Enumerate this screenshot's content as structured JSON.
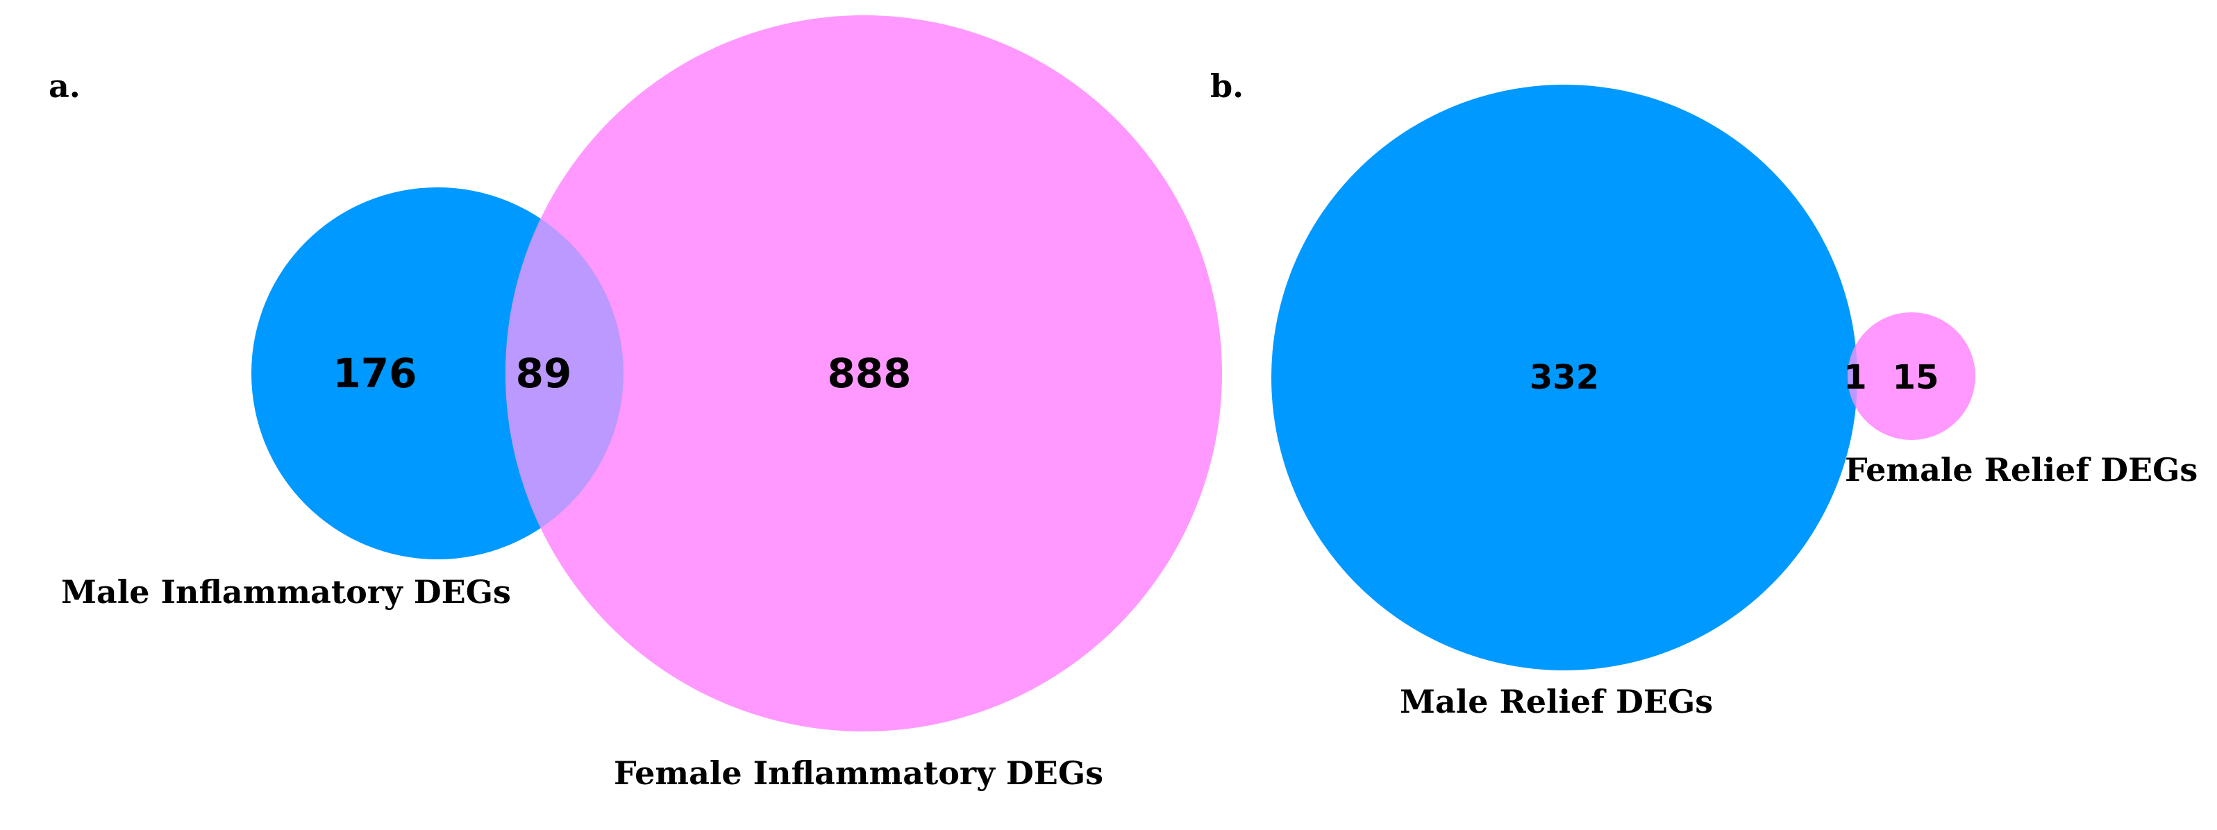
{
  "panels": [
    {
      "label": "a.",
      "sets": [
        {
          "name": "Male Inflammatory DEGs",
          "color": "#0099ff"
        },
        {
          "name": "Female Inflammatory DEGs",
          "color": "#ff99ff"
        }
      ],
      "counts": {
        "only_first": "176",
        "overlap": "89",
        "only_second": "888"
      },
      "overlap_color": "#bb99ff"
    },
    {
      "label": "b.",
      "sets": [
        {
          "name": "Male Relief DEGs",
          "color": "#0099ff"
        },
        {
          "name": "Female Relief DEGs",
          "color": "#ff99ff"
        }
      ],
      "counts": {
        "only_first": "332",
        "overlap": "1",
        "only_second": "15"
      },
      "overlap_color": "#bb99ff"
    }
  ]
}
